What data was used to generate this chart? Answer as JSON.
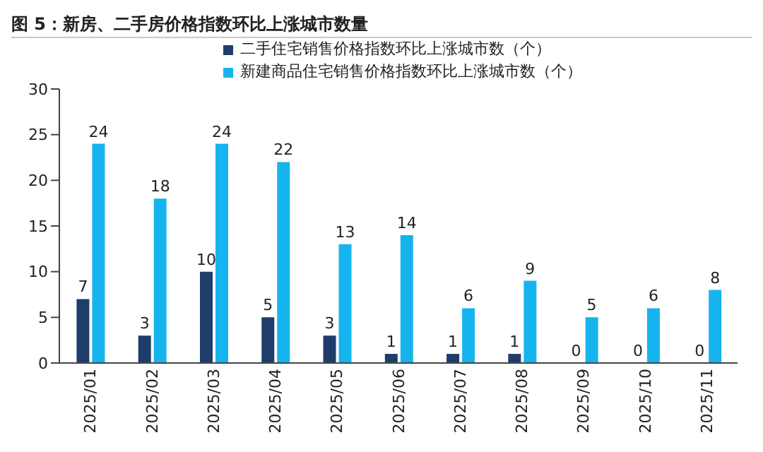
{
  "chart_data": {
    "type": "bar",
    "title": "图 5：新房、二手房价格指数环比上涨城市数量",
    "categories": [
      "2025/01",
      "2025/02",
      "2025/03",
      "2025/04",
      "2025/05",
      "2025/06",
      "2025/07",
      "2025/08",
      "2025/09",
      "2025/10",
      "2025/11"
    ],
    "series": [
      {
        "name": "二手住宅销售价格指数环比上涨城市数（个）",
        "color": "#1f3d6b",
        "values": [
          7,
          3,
          10,
          5,
          3,
          1,
          1,
          1,
          0,
          0,
          0
        ]
      },
      {
        "name": "新建商品住宅销售价格指数环比上涨城市数（个）",
        "color": "#16b4ee",
        "values": [
          24,
          18,
          24,
          22,
          13,
          14,
          6,
          9,
          5,
          6,
          8
        ]
      }
    ],
    "ylim": [
      0,
      30
    ],
    "yticks": [
      0,
      5,
      10,
      15,
      20,
      25,
      30
    ],
    "grid": false,
    "legend": "top",
    "data_labels": true
  }
}
